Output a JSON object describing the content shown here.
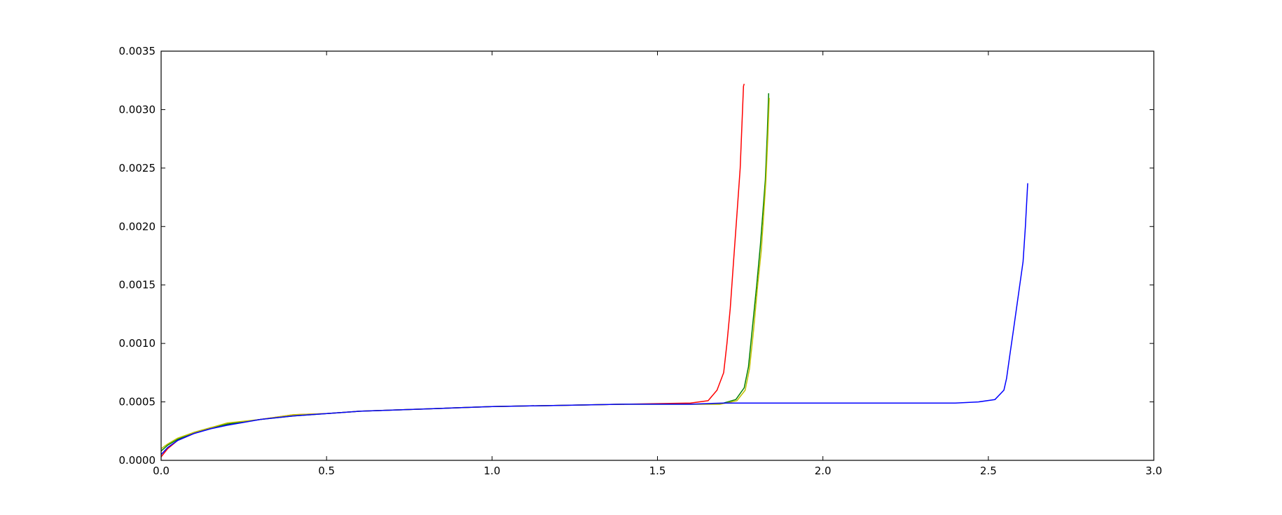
{
  "chart_data": {
    "type": "line",
    "title": "",
    "xlabel": "",
    "ylabel": "",
    "xlim": [
      0.0,
      3.0
    ],
    "ylim": [
      0.0,
      0.0035
    ],
    "grid": false,
    "legend": "none",
    "x_ticks": [
      "0.0",
      "0.5",
      "1.0",
      "1.5",
      "2.0",
      "2.5",
      "3.0"
    ],
    "x_tick_values": [
      0,
      0.5,
      1.0,
      1.5,
      2.0,
      2.5,
      3.0
    ],
    "y_ticks": [
      "0.0000",
      "0.0005",
      "0.0010",
      "0.0015",
      "0.0020",
      "0.0025",
      "0.0030",
      "0.0035"
    ],
    "y_tick_values": [
      0,
      0.0005,
      0.001,
      0.0015,
      0.002,
      0.0025,
      0.003,
      0.0035
    ],
    "series": [
      {
        "color": "#ff0000",
        "x": [
          0,
          0.02,
          0.05,
          0.1,
          0.15,
          0.2,
          0.3,
          0.4,
          0.5,
          0.6,
          0.7,
          0.8,
          0.9,
          1.0,
          1.2,
          1.4,
          1.6,
          1.653,
          1.68,
          1.7,
          1.71,
          1.72,
          1.73,
          1.74,
          1.75,
          1.76,
          1.762
        ],
        "y": [
          3e-05,
          0.0001,
          0.00017,
          0.00023,
          0.00028,
          0.00031,
          0.00035,
          0.00039,
          0.0004,
          0.00042,
          0.00043,
          0.00044,
          0.00045,
          0.00046,
          0.00047,
          0.00048,
          0.00049,
          0.00051,
          0.0006,
          0.00075,
          0.001,
          0.0013,
          0.0017,
          0.0021,
          0.0025,
          0.0032,
          0.00322
        ]
      },
      {
        "color": "#008000",
        "x": [
          0,
          0.02,
          0.05,
          0.1,
          0.15,
          0.2,
          0.3,
          0.4,
          0.5,
          0.6,
          0.7,
          0.8,
          0.9,
          1.0,
          1.2,
          1.4,
          1.6,
          1.688,
          1.737,
          1.762,
          1.775,
          1.787,
          1.8,
          1.811,
          1.826,
          1.832,
          1.836
        ],
        "y": [
          8e-05,
          0.00013,
          0.00018,
          0.00024,
          0.00028,
          0.00031,
          0.00035,
          0.00038,
          0.0004,
          0.00042,
          0.00043,
          0.00044,
          0.00045,
          0.00046,
          0.00047,
          0.00048,
          0.00048,
          0.00048,
          0.00052,
          0.00062,
          0.0008,
          0.00114,
          0.0015,
          0.00184,
          0.0024,
          0.0028,
          0.00314
        ]
      },
      {
        "color": "#bfbf00",
        "x": [
          0,
          0.02,
          0.05,
          0.1,
          0.15,
          0.2,
          0.3,
          0.4,
          0.5,
          0.6,
          0.7,
          0.8,
          0.9,
          1.0,
          1.2,
          1.4,
          1.6,
          1.69,
          1.74,
          1.765,
          1.778,
          1.79,
          1.803,
          1.814,
          1.828,
          1.834,
          1.838
        ],
        "y": [
          0.0001,
          0.00014,
          0.00019,
          0.00024,
          0.00028,
          0.00032,
          0.00035,
          0.00039,
          0.0004,
          0.00042,
          0.00043,
          0.00044,
          0.00045,
          0.00046,
          0.00047,
          0.00048,
          0.00048,
          0.00048,
          0.00051,
          0.0006,
          0.00078,
          0.0011,
          0.0015,
          0.0018,
          0.0024,
          0.0028,
          0.0031
        ]
      },
      {
        "color": "#0000ff",
        "x": [
          0,
          0.02,
          0.05,
          0.1,
          0.15,
          0.2,
          0.3,
          0.4,
          0.5,
          0.6,
          0.7,
          0.8,
          0.9,
          1.0,
          1.2,
          1.4,
          1.6,
          1.7,
          2.0,
          2.4,
          2.47,
          2.52,
          2.547,
          2.555,
          2.565,
          2.575,
          2.585,
          2.595,
          2.605,
          2.612,
          2.619
        ],
        "y": [
          5e-05,
          0.00011,
          0.00017,
          0.00023,
          0.00027,
          0.0003,
          0.00035,
          0.00038,
          0.0004,
          0.00042,
          0.00043,
          0.00044,
          0.00045,
          0.00046,
          0.00047,
          0.00048,
          0.00048,
          0.00049,
          0.00049,
          0.00049,
          0.0005,
          0.00052,
          0.0006,
          0.0007,
          0.0009,
          0.0011,
          0.0013,
          0.0015,
          0.0017,
          0.002,
          0.00237
        ]
      }
    ]
  }
}
